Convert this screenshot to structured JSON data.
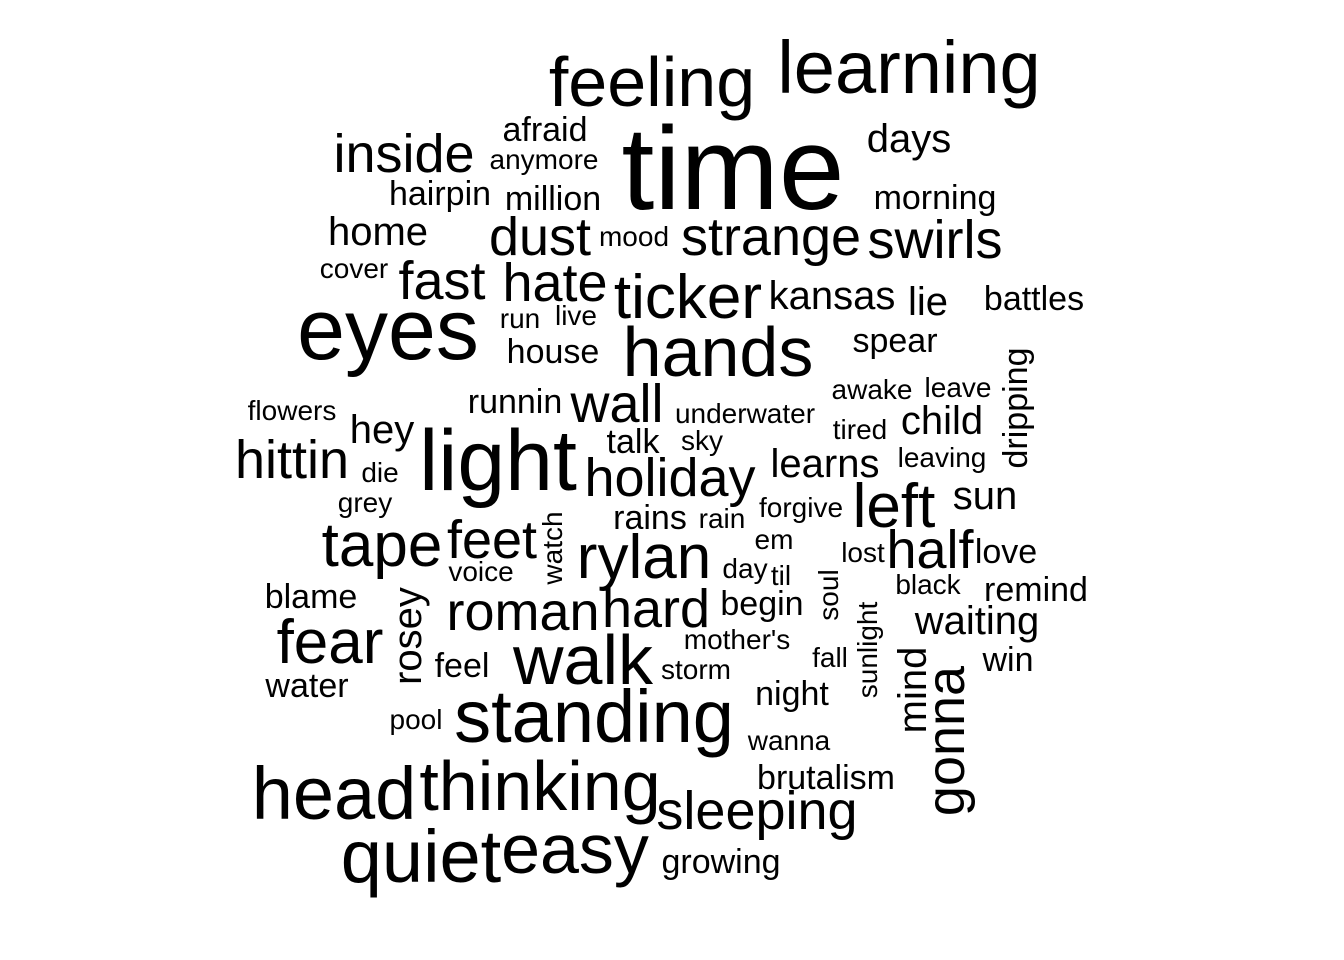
{
  "words": [
    {
      "text": "time",
      "weight": 10,
      "vertical": false
    },
    {
      "text": "eyes",
      "weight": 8,
      "vertical": false
    },
    {
      "text": "light",
      "weight": 8,
      "vertical": false
    },
    {
      "text": "learning",
      "weight": 7,
      "vertical": false
    },
    {
      "text": "head",
      "weight": 7,
      "vertical": false
    },
    {
      "text": "quiet",
      "weight": 7,
      "vertical": false
    },
    {
      "text": "standing",
      "weight": 7,
      "vertical": false
    },
    {
      "text": "feeling",
      "weight": 6,
      "vertical": false
    },
    {
      "text": "hands",
      "weight": 6,
      "vertical": false
    },
    {
      "text": "walk",
      "weight": 6,
      "vertical": false
    },
    {
      "text": "thinking",
      "weight": 6,
      "vertical": false
    },
    {
      "text": "easy",
      "weight": 6,
      "vertical": false
    },
    {
      "text": "ticker",
      "weight": 5,
      "vertical": false
    },
    {
      "text": "tape",
      "weight": 5,
      "vertical": false
    },
    {
      "text": "fear",
      "weight": 5,
      "vertical": false
    },
    {
      "text": "rylan",
      "weight": 5,
      "vertical": false
    },
    {
      "text": "left",
      "weight": 5,
      "vertical": false
    },
    {
      "text": "inside",
      "weight": 4,
      "vertical": false
    },
    {
      "text": "dust",
      "weight": 4,
      "vertical": false
    },
    {
      "text": "strange",
      "weight": 4,
      "vertical": false
    },
    {
      "text": "swirls",
      "weight": 4,
      "vertical": false
    },
    {
      "text": "fast",
      "weight": 4,
      "vertical": false
    },
    {
      "text": "hate",
      "weight": 4,
      "vertical": false
    },
    {
      "text": "wall",
      "weight": 4,
      "vertical": false
    },
    {
      "text": "hittin",
      "weight": 4,
      "vertical": false
    },
    {
      "text": "holiday",
      "weight": 4,
      "vertical": false
    },
    {
      "text": "feet",
      "weight": 4,
      "vertical": false
    },
    {
      "text": "half",
      "weight": 4,
      "vertical": false
    },
    {
      "text": "roman",
      "weight": 4,
      "vertical": false
    },
    {
      "text": "hard",
      "weight": 4,
      "vertical": false
    },
    {
      "text": "sleeping",
      "weight": 4,
      "vertical": false
    },
    {
      "text": "gonna",
      "weight": 4,
      "vertical": true
    },
    {
      "text": "days",
      "weight": 3,
      "vertical": false
    },
    {
      "text": "home",
      "weight": 3,
      "vertical": false
    },
    {
      "text": "kansas",
      "weight": 3,
      "vertical": false
    },
    {
      "text": "lie",
      "weight": 3,
      "vertical": false
    },
    {
      "text": "hey",
      "weight": 3,
      "vertical": false
    },
    {
      "text": "child",
      "weight": 3,
      "vertical": false
    },
    {
      "text": "learns",
      "weight": 3,
      "vertical": false
    },
    {
      "text": "sun",
      "weight": 3,
      "vertical": false
    },
    {
      "text": "waiting",
      "weight": 3,
      "vertical": false
    },
    {
      "text": "rosey",
      "weight": 3,
      "vertical": true
    },
    {
      "text": "mind",
      "weight": 3,
      "vertical": true
    },
    {
      "text": "afraid",
      "weight": 2,
      "vertical": false
    },
    {
      "text": "hairpin",
      "weight": 2,
      "vertical": false
    },
    {
      "text": "million",
      "weight": 2,
      "vertical": false
    },
    {
      "text": "morning",
      "weight": 2,
      "vertical": false
    },
    {
      "text": "battles",
      "weight": 2,
      "vertical": false
    },
    {
      "text": "house",
      "weight": 2,
      "vertical": false
    },
    {
      "text": "spear",
      "weight": 2,
      "vertical": false
    },
    {
      "text": "runnin",
      "weight": 2,
      "vertical": false
    },
    {
      "text": "talk",
      "weight": 2,
      "vertical": false
    },
    {
      "text": "rains",
      "weight": 2,
      "vertical": false
    },
    {
      "text": "blame",
      "weight": 2,
      "vertical": false
    },
    {
      "text": "feel",
      "weight": 2,
      "vertical": false
    },
    {
      "text": "water",
      "weight": 2,
      "vertical": false
    },
    {
      "text": "love",
      "weight": 2,
      "vertical": false
    },
    {
      "text": "begin",
      "weight": 2,
      "vertical": false
    },
    {
      "text": "remind",
      "weight": 2,
      "vertical": false
    },
    {
      "text": "night",
      "weight": 2,
      "vertical": false
    },
    {
      "text": "win",
      "weight": 2,
      "vertical": false
    },
    {
      "text": "brutalism",
      "weight": 2,
      "vertical": false
    },
    {
      "text": "growing",
      "weight": 2,
      "vertical": false
    },
    {
      "text": "dripping",
      "weight": 2,
      "vertical": true
    },
    {
      "text": "anymore",
      "weight": 1,
      "vertical": false
    },
    {
      "text": "mood",
      "weight": 1,
      "vertical": false
    },
    {
      "text": "cover",
      "weight": 1,
      "vertical": false
    },
    {
      "text": "run",
      "weight": 1,
      "vertical": false
    },
    {
      "text": "live",
      "weight": 1,
      "vertical": false
    },
    {
      "text": "awake",
      "weight": 1,
      "vertical": false
    },
    {
      "text": "leave",
      "weight": 1,
      "vertical": false
    },
    {
      "text": "flowers",
      "weight": 1,
      "vertical": false
    },
    {
      "text": "underwater",
      "weight": 1,
      "vertical": false
    },
    {
      "text": "tired",
      "weight": 1,
      "vertical": false
    },
    {
      "text": "sky",
      "weight": 1,
      "vertical": false
    },
    {
      "text": "leaving",
      "weight": 1,
      "vertical": false
    },
    {
      "text": "die",
      "weight": 1,
      "vertical": false
    },
    {
      "text": "grey",
      "weight": 1,
      "vertical": false
    },
    {
      "text": "forgive",
      "weight": 1,
      "vertical": false
    },
    {
      "text": "rain",
      "weight": 1,
      "vertical": false
    },
    {
      "text": "em",
      "weight": 1,
      "vertical": false
    },
    {
      "text": "lost",
      "weight": 1,
      "vertical": false
    },
    {
      "text": "voice",
      "weight": 1,
      "vertical": false
    },
    {
      "text": "day",
      "weight": 1,
      "vertical": false
    },
    {
      "text": "til",
      "weight": 1,
      "vertical": false
    },
    {
      "text": "black",
      "weight": 1,
      "vertical": false
    },
    {
      "text": "mother's",
      "weight": 1,
      "vertical": false
    },
    {
      "text": "storm",
      "weight": 1,
      "vertical": false
    },
    {
      "text": "fall",
      "weight": 1,
      "vertical": false
    },
    {
      "text": "pool",
      "weight": 1,
      "vertical": false
    },
    {
      "text": "wanna",
      "weight": 1,
      "vertical": false
    },
    {
      "text": "watch",
      "weight": 1,
      "vertical": true
    },
    {
      "text": "soul",
      "weight": 1,
      "vertical": true
    },
    {
      "text": "sunlight",
      "weight": 1,
      "vertical": true
    }
  ]
}
